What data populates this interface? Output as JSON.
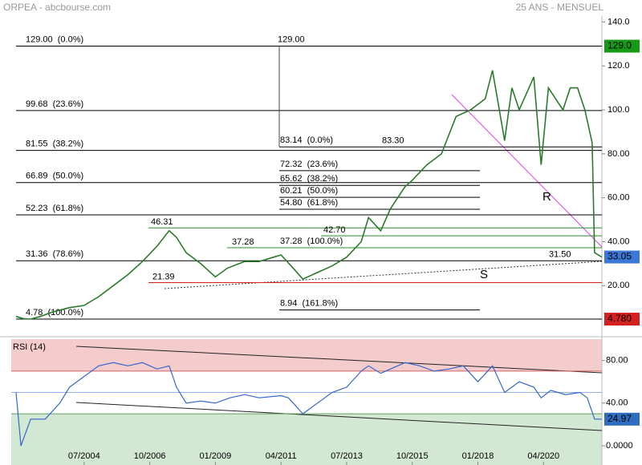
{
  "header": {
    "title": "ORPEA - abcbourse.com",
    "period": "25 ANS - MENSUEL"
  },
  "chart_data": [
    {
      "type": "line",
      "color": "#2b7a2b",
      "x": [
        "03/2002",
        "06/2002",
        "09/2002",
        "01/2003",
        "06/2003",
        "01/2004",
        "07/2004",
        "01/2005",
        "07/2005",
        "01/2006",
        "07/2006",
        "01/2007",
        "06/2007",
        "09/2007",
        "01/2008",
        "07/2008",
        "01/2009",
        "06/2009",
        "01/2010",
        "07/2010",
        "01/2011",
        "04/2011",
        "09/2011",
        "01/2012",
        "07/2012",
        "01/2013",
        "07/2013",
        "01/2014",
        "04/2014",
        "09/2014",
        "01/2015",
        "07/2015",
        "10/2015",
        "04/2016",
        "10/2016",
        "04/2017",
        "10/2017",
        "04/2018",
        "07/2018",
        "12/2018",
        "03/2019",
        "06/2019",
        "12/2019",
        "03/2020",
        "06/2020",
        "12/2020",
        "03/2021",
        "06/2021",
        "09/2021",
        "12/2021",
        "01/2022",
        "04/2022"
      ],
      "values": [
        6,
        5,
        4.8,
        6,
        8,
        10,
        11,
        15,
        20,
        25,
        31,
        38,
        45,
        42,
        35,
        30,
        24,
        28,
        31,
        31,
        33,
        34,
        28,
        23,
        26,
        29,
        33,
        40,
        51,
        45,
        55,
        65,
        68,
        75,
        80,
        97,
        100,
        105,
        118,
        86,
        110,
        100,
        115,
        75,
        110,
        100,
        110,
        110,
        100,
        85,
        35,
        33
      ],
      "xlim": [
        "03/2002",
        "04/2022"
      ],
      "ylim": [
        -2.5,
        150
      ],
      "yticks": [
        {
          "value": 140,
          "label": "140.0"
        },
        {
          "value": 120,
          "label": "120.0"
        },
        {
          "value": 100,
          "label": "100.0"
        },
        {
          "value": 80,
          "label": "80.00"
        },
        {
          "value": 60,
          "label": "60.00"
        },
        {
          "value": 40,
          "label": "40.00"
        },
        {
          "value": 20,
          "label": "20.00"
        }
      ],
      "retracement_long": [
        {
          "value": 129,
          "label": "129.00  (0.0%)"
        },
        {
          "value": 99.68,
          "label": "99.68  (23.6%)"
        },
        {
          "value": 81.55,
          "label": "81.55  (38.2%)"
        },
        {
          "value": 66.89,
          "label": "66.89  (50.0%)"
        },
        {
          "value": 52.23,
          "label": "52.23  (61.8%)"
        },
        {
          "value": 31.36,
          "label": "31.36  (78.6%)"
        },
        {
          "value": 4.78,
          "label": "4.78  (100.0%)"
        }
      ],
      "retracement_short": [
        {
          "value": 83.14,
          "label": "83.14  (0.0%)"
        },
        {
          "value": 72.32,
          "label": "72.32  (23.6%)"
        },
        {
          "value": 65.62,
          "label": "65.62  (38.2%)"
        },
        {
          "value": 60.21,
          "label": "60.21  (50.0%)"
        },
        {
          "value": 54.8,
          "label": "54.80  (61.8%)"
        },
        {
          "value": 37.28,
          "label": "37.28  (100.0%)"
        },
        {
          "value": 8.94,
          "label": "8.94  (161.8%)"
        }
      ],
      "swing_high": {
        "value": 129,
        "label": "129.00"
      },
      "levels": [
        {
          "value": 46.31,
          "label": "46.31",
          "color": "#2e8b2e"
        },
        {
          "value": 42.7,
          "label": "42.70",
          "color": "#2e8b2e"
        },
        {
          "value": 37.28,
          "label": "37.28",
          "color": "#2e8b2e"
        },
        {
          "value": 21.39,
          "label": "21.39",
          "color": "#d62020"
        },
        {
          "value": 83.3,
          "label": "83.30",
          "color": "#000000"
        },
        {
          "value": 31.5,
          "label": "31.50",
          "color": "#000000"
        }
      ],
      "markers": [
        {
          "value": 129,
          "label": "129.0",
          "color": "#159a15"
        },
        {
          "value": 33.05,
          "label": "33.05",
          "color": "#3b78d8"
        },
        {
          "value": 4.78,
          "label": "4.780",
          "color": "#d62020"
        }
      ],
      "trend_labels": {
        "resistance": "R",
        "support": "S"
      }
    },
    {
      "type": "line",
      "title": "RSI (14)",
      "color": "#3366cc",
      "x": [
        "03/2002",
        "05/2002",
        "09/2002",
        "03/2003",
        "09/2003",
        "01/2004",
        "07/2004",
        "01/2005",
        "07/2005",
        "01/2006",
        "07/2006",
        "01/2007",
        "06/2007",
        "09/2007",
        "01/2008",
        "07/2008",
        "01/2009",
        "07/2009",
        "01/2010",
        "07/2010",
        "04/2011",
        "07/2011",
        "01/2012",
        "07/2012",
        "01/2013",
        "07/2013",
        "01/2014",
        "04/2014",
        "09/2014",
        "01/2015",
        "07/2015",
        "01/2016",
        "07/2016",
        "01/2017",
        "07/2017",
        "01/2018",
        "07/2018",
        "12/2018",
        "06/2019",
        "12/2019",
        "03/2020",
        "07/2020",
        "01/2021",
        "07/2021",
        "10/2021",
        "01/2022",
        "04/2022"
      ],
      "values": [
        50,
        0,
        25,
        25,
        40,
        55,
        65,
        75,
        78,
        75,
        78,
        72,
        75,
        55,
        40,
        42,
        40,
        45,
        48,
        45,
        47,
        45,
        30,
        40,
        50,
        55,
        70,
        75,
        68,
        72,
        78,
        75,
        70,
        72,
        75,
        60,
        75,
        50,
        60,
        55,
        45,
        52,
        48,
        50,
        45,
        25,
        25
      ],
      "xlim": [
        "03/2002",
        "04/2022"
      ],
      "ylim": [
        -18,
        100
      ],
      "yticks": [
        {
          "value": 80,
          "label": "80.00"
        },
        {
          "value": 40,
          "label": "40.00"
        },
        {
          "value": 0,
          "label": "0.0000"
        }
      ],
      "xticks": [
        "07/2004",
        "10/2006",
        "01/2009",
        "04/2011",
        "07/2013",
        "10/2015",
        "01/2018",
        "04/2020"
      ],
      "overbought": 70,
      "midline": 50,
      "oversold": 30,
      "last_label": {
        "value": 24.97,
        "label": "24.97"
      }
    }
  ]
}
